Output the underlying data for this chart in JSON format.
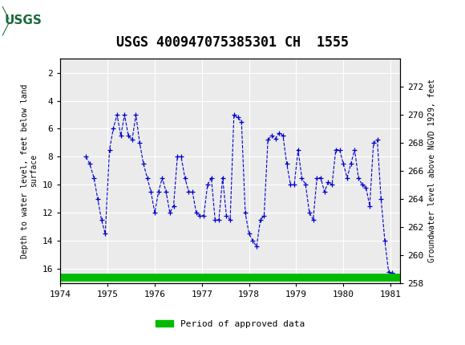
{
  "title": "USGS 400947075385301 CH  1555",
  "xlabel": "",
  "ylabel_left": "Depth to water level, feet below land\nsurface",
  "ylabel_right": "Groundwater level above NGVD 1929, feet",
  "xlim": [
    1974.0,
    1981.2
  ],
  "ylim_left": [
    17,
    1
  ],
  "ylim_right": [
    258,
    274
  ],
  "xticks": [
    1974,
    1975,
    1976,
    1977,
    1978,
    1979,
    1980,
    1981
  ],
  "yticks_left": [
    2,
    4,
    6,
    8,
    10,
    12,
    14,
    16
  ],
  "yticks_right": [
    258,
    260,
    262,
    264,
    266,
    268,
    270,
    272
  ],
  "line_color": "#0000CC",
  "marker": "+",
  "linestyle": "--",
  "header_bg": "#1a6b3c",
  "legend_label": "Period of approved data",
  "legend_color": "#00BB00",
  "background_color": "#ffffff",
  "plot_bg": "#ebebeb",
  "x_data": [
    1974.54,
    1974.62,
    1974.71,
    1974.79,
    1974.87,
    1974.95,
    1975.04,
    1975.12,
    1975.2,
    1975.28,
    1975.36,
    1975.44,
    1975.52,
    1975.6,
    1975.68,
    1975.76,
    1975.84,
    1975.92,
    1976.0,
    1976.08,
    1976.16,
    1976.24,
    1976.32,
    1976.4,
    1976.48,
    1976.56,
    1976.64,
    1976.72,
    1976.8,
    1976.88,
    1976.96,
    1977.04,
    1977.12,
    1977.2,
    1977.28,
    1977.36,
    1977.44,
    1977.52,
    1977.6,
    1977.68,
    1977.76,
    1977.84,
    1977.92,
    1978.0,
    1978.08,
    1978.16,
    1978.24,
    1978.32,
    1978.4,
    1978.48,
    1978.56,
    1978.64,
    1978.72,
    1978.8,
    1978.88,
    1978.96,
    1979.04,
    1979.12,
    1979.2,
    1979.28,
    1979.36,
    1979.44,
    1979.52,
    1979.6,
    1979.68,
    1979.76,
    1979.84,
    1979.92,
    1980.0,
    1980.08,
    1980.16,
    1980.24,
    1980.32,
    1980.4,
    1980.48,
    1980.56,
    1980.64,
    1980.72,
    1980.8,
    1980.88,
    1980.96,
    1981.04,
    1981.12
  ],
  "y_data": [
    8.0,
    8.5,
    9.5,
    11.0,
    12.5,
    13.5,
    7.5,
    6.0,
    5.0,
    6.5,
    5.0,
    6.5,
    6.8,
    5.0,
    7.0,
    8.5,
    9.5,
    10.5,
    12.0,
    10.5,
    9.5,
    10.5,
    12.0,
    11.5,
    8.0,
    8.0,
    9.5,
    10.5,
    10.5,
    12.0,
    12.2,
    12.2,
    10.0,
    9.5,
    12.5,
    12.5,
    9.5,
    12.2,
    12.5,
    5.0,
    5.2,
    5.5,
    12.0,
    13.5,
    14.0,
    14.4,
    12.5,
    12.2,
    6.8,
    6.5,
    6.7,
    6.3,
    6.5,
    8.5,
    10.0,
    10.0,
    7.5,
    9.5,
    10.0,
    12.0,
    12.5,
    9.5,
    9.5,
    10.5,
    9.8,
    10.0,
    7.5,
    7.5,
    8.5,
    9.5,
    8.5,
    7.5,
    9.5,
    10.0,
    10.2,
    11.5,
    7.0,
    6.8,
    11.0,
    14.0,
    16.2,
    16.3,
    16.5
  ]
}
